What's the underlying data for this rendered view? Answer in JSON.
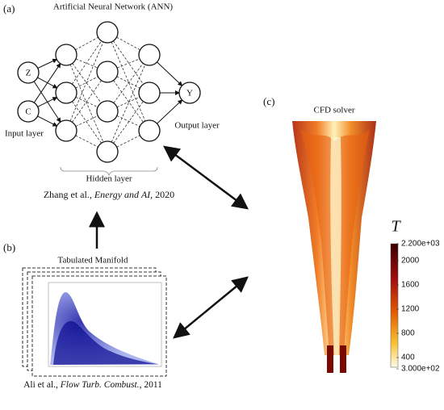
{
  "panel_a": {
    "label": "(a)",
    "title": "Artificial Neural Network (ANN)",
    "nodes": {
      "input_1": "Z",
      "input_2": "C",
      "output": "Y"
    },
    "input_layer": "Input layer",
    "output_layer": "Output layer",
    "hidden_layer": "Hidden layer",
    "citation": {
      "authors": "Zhang et al., ",
      "journal": "Energy and AI",
      "year": ", 2020"
    }
  },
  "panel_b": {
    "label": "(b)",
    "title": "Tabulated Manifold",
    "citation": {
      "authors": "Ali et al., ",
      "journal": "Flow Turb. Combust.",
      "year": ", 2011"
    }
  },
  "panel_c": {
    "label": "(c)",
    "title": "CFD solver",
    "colorbar": {
      "title": "T",
      "labels": [
        "2.200e+03",
        "2000",
        "1600",
        "1200",
        "800",
        "400",
        "3.000e+02"
      ]
    }
  }
}
